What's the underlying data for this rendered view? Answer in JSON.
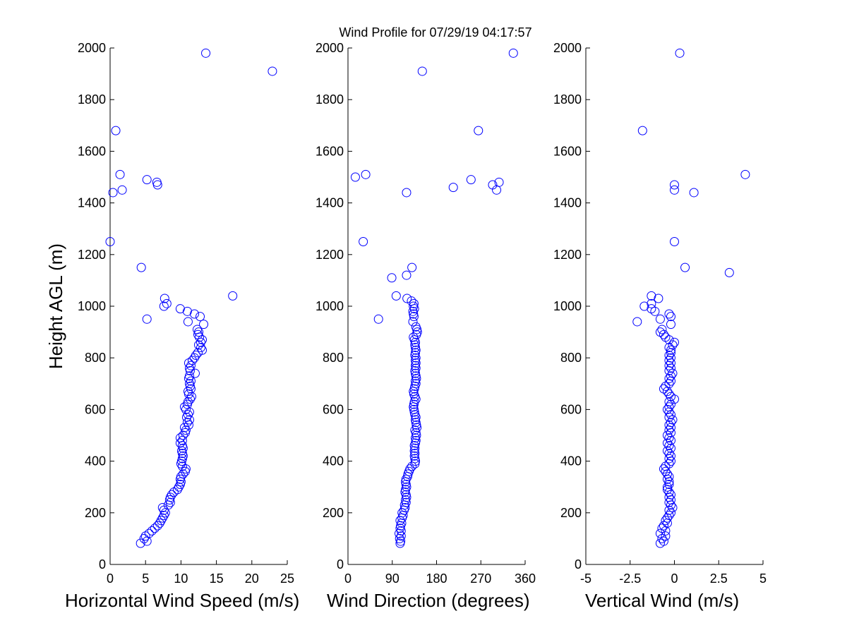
{
  "title": "Wind Profile for  07/29/19 04:17:57",
  "colors": {
    "marker": "#0000ff",
    "axis": "#000000",
    "background": "#ffffff"
  },
  "chart_data": [
    {
      "type": "scatter",
      "xlabel": "Horizontal Wind Speed (m/s)",
      "ylabel": "Height AGL (m)",
      "xlim": [
        0,
        25
      ],
      "ylim": [
        0,
        2000
      ],
      "xticks": [
        "0",
        "5",
        "10",
        "15",
        "20",
        "25"
      ],
      "yticks": [
        "0",
        "200",
        "400",
        "600",
        "800",
        "1000",
        "1200",
        "1400",
        "1600",
        "1800",
        "2000"
      ],
      "grid": false,
      "points": [
        [
          4.3,
          82
        ],
        [
          5.2,
          90
        ],
        [
          4.8,
          100
        ],
        [
          5.0,
          110
        ],
        [
          5.5,
          120
        ],
        [
          5.9,
          130
        ],
        [
          6.3,
          140
        ],
        [
          6.7,
          150
        ],
        [
          7.0,
          160
        ],
        [
          7.2,
          170
        ],
        [
          7.4,
          180
        ],
        [
          7.6,
          190
        ],
        [
          7.8,
          200
        ],
        [
          7.6,
          210
        ],
        [
          7.4,
          220
        ],
        [
          8.2,
          230
        ],
        [
          8.5,
          240
        ],
        [
          8.4,
          250
        ],
        [
          8.5,
          260
        ],
        [
          8.7,
          270
        ],
        [
          9.0,
          280
        ],
        [
          9.5,
          290
        ],
        [
          9.7,
          300
        ],
        [
          9.9,
          310
        ],
        [
          10.0,
          320
        ],
        [
          9.9,
          330
        ],
        [
          10.0,
          340
        ],
        [
          10.3,
          350
        ],
        [
          10.6,
          360
        ],
        [
          10.7,
          370
        ],
        [
          10.2,
          380
        ],
        [
          10.0,
          390
        ],
        [
          10.1,
          400
        ],
        [
          10.2,
          410
        ],
        [
          10.3,
          420
        ],
        [
          10.2,
          430
        ],
        [
          10.1,
          440
        ],
        [
          10.3,
          450
        ],
        [
          10.2,
          460
        ],
        [
          9.9,
          470
        ],
        [
          10.2,
          480
        ],
        [
          9.9,
          490
        ],
        [
          10.3,
          500
        ],
        [
          10.6,
          510
        ],
        [
          10.7,
          520
        ],
        [
          10.5,
          530
        ],
        [
          11.1,
          540
        ],
        [
          10.9,
          550
        ],
        [
          11.2,
          560
        ],
        [
          10.8,
          570
        ],
        [
          11.0,
          580
        ],
        [
          11.2,
          590
        ],
        [
          10.7,
          600
        ],
        [
          10.5,
          610
        ],
        [
          10.9,
          620
        ],
        [
          11.0,
          630
        ],
        [
          11.3,
          640
        ],
        [
          11.5,
          650
        ],
        [
          11.1,
          660
        ],
        [
          11.0,
          670
        ],
        [
          11.4,
          680
        ],
        [
          11.3,
          690
        ],
        [
          11.2,
          700
        ],
        [
          11.4,
          710
        ],
        [
          11.1,
          720
        ],
        [
          11.2,
          730
        ],
        [
          12.0,
          740
        ],
        [
          11.3,
          750
        ],
        [
          11.2,
          760
        ],
        [
          11.4,
          770
        ],
        [
          11.1,
          780
        ],
        [
          11.6,
          790
        ],
        [
          11.9,
          800
        ],
        [
          12.1,
          810
        ],
        [
          12.4,
          820
        ],
        [
          13.0,
          830
        ],
        [
          12.8,
          840
        ],
        [
          12.5,
          850
        ],
        [
          12.8,
          860
        ],
        [
          13.0,
          870
        ],
        [
          12.6,
          880
        ],
        [
          12.4,
          890
        ],
        [
          12.5,
          900
        ],
        [
          12.3,
          910
        ],
        [
          13.2,
          930
        ],
        [
          11.0,
          940
        ],
        [
          5.2,
          950
        ],
        [
          12.7,
          960
        ],
        [
          11.9,
          970
        ],
        [
          10.9,
          980
        ],
        [
          9.9,
          990
        ],
        [
          7.6,
          1000
        ],
        [
          8.0,
          1010
        ],
        [
          7.7,
          1030
        ],
        [
          17.3,
          1040
        ],
        [
          4.4,
          1150
        ],
        [
          0.0,
          1250
        ],
        [
          0.4,
          1440
        ],
        [
          1.7,
          1450
        ],
        [
          6.7,
          1470
        ],
        [
          6.6,
          1480
        ],
        [
          5.2,
          1490
        ],
        [
          1.4,
          1510
        ],
        [
          0.8,
          1680
        ],
        [
          22.9,
          1910
        ],
        [
          13.5,
          1980
        ]
      ]
    },
    {
      "type": "scatter",
      "xlabel": "Wind Direction (degrees)",
      "ylabel": "",
      "xlim": [
        0,
        360
      ],
      "ylim": [
        0,
        2000
      ],
      "xticks": [
        "0",
        "90",
        "180",
        "270",
        "360"
      ],
      "yticks": [
        "0",
        "200",
        "400",
        "600",
        "800",
        "1000",
        "1200",
        "1400",
        "1600",
        "1800",
        "2000"
      ],
      "grid": false,
      "points": [
        [
          106,
          82
        ],
        [
          107,
          90
        ],
        [
          105,
          100
        ],
        [
          108,
          110
        ],
        [
          104,
          120
        ],
        [
          108,
          130
        ],
        [
          106,
          140
        ],
        [
          107,
          150
        ],
        [
          109,
          160
        ],
        [
          106,
          170
        ],
        [
          110,
          180
        ],
        [
          112,
          190
        ],
        [
          110,
          200
        ],
        [
          114,
          210
        ],
        [
          116,
          220
        ],
        [
          115,
          230
        ],
        [
          118,
          240
        ],
        [
          117,
          250
        ],
        [
          119,
          260
        ],
        [
          118,
          270
        ],
        [
          116,
          280
        ],
        [
          117,
          290
        ],
        [
          119,
          300
        ],
        [
          118,
          310
        ],
        [
          117,
          320
        ],
        [
          118,
          330
        ],
        [
          121,
          340
        ],
        [
          122,
          350
        ],
        [
          124,
          360
        ],
        [
          126,
          370
        ],
        [
          130,
          380
        ],
        [
          136,
          390
        ],
        [
          137,
          400
        ],
        [
          136,
          410
        ],
        [
          135,
          420
        ],
        [
          136,
          430
        ],
        [
          135,
          440
        ],
        [
          136,
          450
        ],
        [
          135,
          460
        ],
        [
          137,
          470
        ],
        [
          138,
          480
        ],
        [
          137,
          490
        ],
        [
          139,
          500
        ],
        [
          138,
          510
        ],
        [
          136,
          520
        ],
        [
          140,
          530
        ],
        [
          139,
          540
        ],
        [
          138,
          550
        ],
        [
          137,
          560
        ],
        [
          138,
          570
        ],
        [
          136,
          580
        ],
        [
          135,
          590
        ],
        [
          134,
          600
        ],
        [
          133,
          610
        ],
        [
          134,
          620
        ],
        [
          135,
          630
        ],
        [
          138,
          640
        ],
        [
          136,
          650
        ],
        [
          134,
          660
        ],
        [
          133,
          670
        ],
        [
          135,
          680
        ],
        [
          136,
          690
        ],
        [
          138,
          700
        ],
        [
          137,
          710
        ],
        [
          139,
          720
        ],
        [
          138,
          730
        ],
        [
          137,
          740
        ],
        [
          136,
          750
        ],
        [
          138,
          760
        ],
        [
          137,
          770
        ],
        [
          138,
          780
        ],
        [
          137,
          790
        ],
        [
          138,
          800
        ],
        [
          136,
          810
        ],
        [
          137,
          820
        ],
        [
          138,
          830
        ],
        [
          137,
          840
        ],
        [
          136,
          850
        ],
        [
          137,
          860
        ],
        [
          135,
          870
        ],
        [
          133,
          880
        ],
        [
          139,
          890
        ],
        [
          141,
          900
        ],
        [
          140,
          910
        ],
        [
          138,
          920
        ],
        [
          132,
          940
        ],
        [
          62,
          950
        ],
        [
          134,
          960
        ],
        [
          133,
          970
        ],
        [
          132,
          980
        ],
        [
          135,
          990
        ],
        [
          133,
          1000
        ],
        [
          134,
          1010
        ],
        [
          129,
          1020
        ],
        [
          120,
          1030
        ],
        [
          98,
          1040
        ],
        [
          89,
          1110
        ],
        [
          119,
          1120
        ],
        [
          130,
          1150
        ],
        [
          31,
          1250
        ],
        [
          119,
          1440
        ],
        [
          302,
          1450
        ],
        [
          214,
          1460
        ],
        [
          294,
          1470
        ],
        [
          307,
          1480
        ],
        [
          250,
          1490
        ],
        [
          15,
          1500
        ],
        [
          36,
          1510
        ],
        [
          265,
          1680
        ],
        [
          151,
          1910
        ],
        [
          336,
          1980
        ]
      ]
    },
    {
      "type": "scatter",
      "xlabel": "Vertical Wind (m/s)",
      "ylabel": "",
      "xlim": [
        -5,
        5
      ],
      "ylim": [
        0,
        2000
      ],
      "xticks": [
        "-5",
        "-2.5",
        "0",
        "2.5",
        "5"
      ],
      "yticks": [
        "0",
        "200",
        "400",
        "600",
        "800",
        "1000",
        "1200",
        "1400",
        "1600",
        "1800",
        "2000"
      ],
      "grid": false,
      "points": [
        [
          -0.8,
          82
        ],
        [
          -0.6,
          90
        ],
        [
          -0.7,
          100
        ],
        [
          -0.5,
          110
        ],
        [
          -0.8,
          120
        ],
        [
          -0.5,
          130
        ],
        [
          -0.7,
          140
        ],
        [
          -0.6,
          150
        ],
        [
          -0.4,
          160
        ],
        [
          -0.5,
          170
        ],
        [
          -0.4,
          180
        ],
        [
          -0.3,
          190
        ],
        [
          -0.2,
          200
        ],
        [
          -0.3,
          210
        ],
        [
          -0.1,
          220
        ],
        [
          -0.2,
          230
        ],
        [
          -0.3,
          240
        ],
        [
          -0.2,
          250
        ],
        [
          -0.3,
          260
        ],
        [
          -0.2,
          270
        ],
        [
          -0.3,
          280
        ],
        [
          -0.4,
          290
        ],
        [
          -0.4,
          300
        ],
        [
          -0.3,
          310
        ],
        [
          -0.3,
          320
        ],
        [
          -0.4,
          330
        ],
        [
          -0.3,
          340
        ],
        [
          -0.4,
          350
        ],
        [
          -0.5,
          360
        ],
        [
          -0.6,
          370
        ],
        [
          -0.5,
          380
        ],
        [
          -0.3,
          390
        ],
        [
          -0.2,
          400
        ],
        [
          -0.3,
          410
        ],
        [
          -0.2,
          420
        ],
        [
          -0.3,
          430
        ],
        [
          -0.4,
          440
        ],
        [
          -0.2,
          450
        ],
        [
          -0.3,
          460
        ],
        [
          -0.4,
          470
        ],
        [
          -0.2,
          480
        ],
        [
          -0.3,
          490
        ],
        [
          -0.4,
          500
        ],
        [
          -0.2,
          510
        ],
        [
          -0.3,
          520
        ],
        [
          -0.2,
          530
        ],
        [
          -0.3,
          540
        ],
        [
          -0.2,
          550
        ],
        [
          -0.1,
          560
        ],
        [
          -0.3,
          570
        ],
        [
          -0.2,
          580
        ],
        [
          -0.3,
          590
        ],
        [
          -0.4,
          600
        ],
        [
          -0.3,
          610
        ],
        [
          -0.2,
          620
        ],
        [
          -0.3,
          630
        ],
        [
          0.0,
          640
        ],
        [
          -0.2,
          650
        ],
        [
          -0.3,
          660
        ],
        [
          -0.4,
          670
        ],
        [
          -0.6,
          680
        ],
        [
          -0.5,
          690
        ],
        [
          -0.3,
          700
        ],
        [
          -0.2,
          710
        ],
        [
          -0.3,
          720
        ],
        [
          -0.2,
          730
        ],
        [
          -0.1,
          740
        ],
        [
          -0.3,
          750
        ],
        [
          -0.2,
          760
        ],
        [
          -0.3,
          770
        ],
        [
          -0.2,
          780
        ],
        [
          -0.3,
          790
        ],
        [
          -0.2,
          800
        ],
        [
          -0.3,
          810
        ],
        [
          -0.2,
          820
        ],
        [
          -0.2,
          830
        ],
        [
          -0.3,
          840
        ],
        [
          -0.1,
          850
        ],
        [
          0.0,
          860
        ],
        [
          -0.3,
          870
        ],
        [
          -0.5,
          880
        ],
        [
          -0.6,
          890
        ],
        [
          -0.8,
          900
        ],
        [
          -0.7,
          910
        ],
        [
          -0.2,
          930
        ],
        [
          -2.1,
          940
        ],
        [
          -0.8,
          950
        ],
        [
          -0.2,
          960
        ],
        [
          -0.3,
          970
        ],
        [
          -1.1,
          980
        ],
        [
          -1.3,
          990
        ],
        [
          -1.7,
          1000
        ],
        [
          -1.3,
          1010
        ],
        [
          -0.9,
          1030
        ],
        [
          -1.3,
          1040
        ],
        [
          3.1,
          1130
        ],
        [
          0.6,
          1150
        ],
        [
          0.0,
          1250
        ],
        [
          1.1,
          1440
        ],
        [
          0.0,
          1450
        ],
        [
          0.0,
          1470
        ],
        [
          4.0,
          1510
        ],
        [
          -1.8,
          1680
        ],
        [
          0.3,
          1980
        ]
      ]
    }
  ]
}
